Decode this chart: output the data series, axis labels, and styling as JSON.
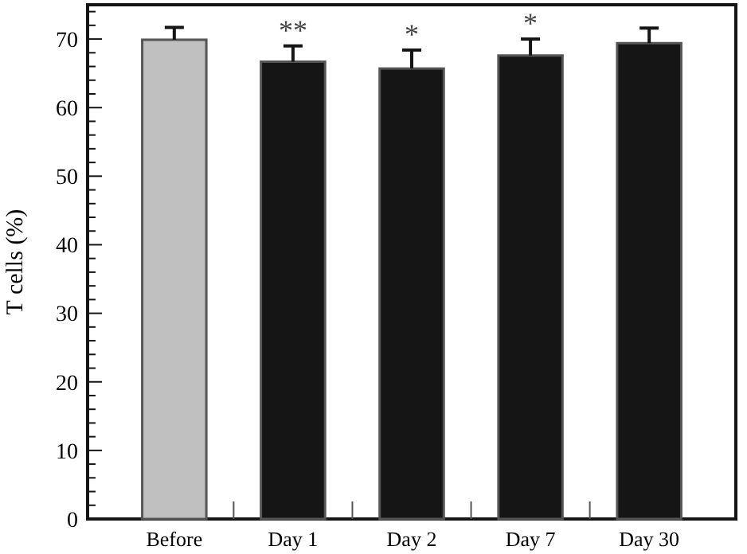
{
  "chart_data": {
    "type": "bar",
    "ylabel": "T cells (%)",
    "categories": [
      "Before",
      "Day 1",
      "Day 2",
      "Day 7",
      "Day 30"
    ],
    "values": [
      69.9,
      66.7,
      65.7,
      67.6,
      69.4
    ],
    "colors": [
      "#c0c0c0",
      "#151515",
      "#151515",
      "#151515",
      "#151515"
    ],
    "errors": [
      [
        69.9,
        71.7
      ],
      [
        66.7,
        69.0
      ],
      [
        65.7,
        68.4
      ],
      [
        67.6,
        70.0
      ],
      [
        69.4,
        71.6
      ]
    ],
    "ylim": [
      0,
      75
    ],
    "yticks": [
      0,
      {
        "value": 2,
        "label": null
      },
      {
        "value": 4,
        "label": null
      },
      {
        "value": 6,
        "label": null
      },
      {
        "value": 8,
        "label": null
      },
      10,
      {
        "value": 12,
        "label": null
      },
      {
        "value": 14,
        "label": null
      },
      {
        "value": 16,
        "label": null
      },
      {
        "value": 18,
        "label": null
      },
      20,
      {
        "value": 22,
        "label": null
      },
      {
        "value": 24,
        "label": null
      },
      {
        "value": 26,
        "label": null
      },
      {
        "value": 28,
        "label": null
      },
      30,
      {
        "value": 32,
        "label": null
      },
      {
        "value": 34,
        "label": null
      },
      {
        "value": 36,
        "label": null
      },
      {
        "value": 38,
        "label": null
      },
      40,
      {
        "value": 42,
        "label": null
      },
      {
        "value": 44,
        "label": null
      },
      {
        "value": 46,
        "label": null
      },
      {
        "value": 48,
        "label": null
      },
      50,
      {
        "value": 52,
        "label": null
      },
      {
        "value": 54,
        "label": null
      },
      {
        "value": 56,
        "label": null
      },
      {
        "value": 58,
        "label": null
      },
      60,
      {
        "value": 62,
        "label": null
      },
      {
        "value": 64,
        "label": null
      },
      {
        "value": 66,
        "label": null
      },
      {
        "value": 68,
        "label": null
      },
      70,
      {
        "value": 72,
        "label": null
      },
      {
        "value": 74,
        "label": null
      }
    ],
    "annotations": [
      {
        "text": "**",
        "x": "Day 1",
        "y": 69.0
      },
      {
        "text": "*",
        "x": "Day 2",
        "y": 68.4
      },
      {
        "text": "*",
        "x": "Day 7",
        "y": 70.0
      }
    ],
    "grid": false
  }
}
